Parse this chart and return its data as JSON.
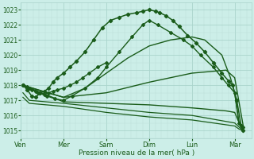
{
  "xlabel": "Pression niveau de la mer( hPa )",
  "background_color": "#cceee8",
  "grid_color_major": "#aad4cc",
  "grid_color_minor": "#bbddd8",
  "line_color": "#1a5c1a",
  "ylim": [
    1014.5,
    1023.5
  ],
  "yticks": [
    1015,
    1016,
    1017,
    1018,
    1019,
    1020,
    1021,
    1022,
    1023
  ],
  "days": [
    "Ven",
    "Mer",
    "Sam",
    "Dim",
    "Lun",
    "Mar"
  ],
  "xlim": [
    0.0,
    5.4
  ],
  "lines": [
    {
      "x": [
        0.05,
        0.15,
        0.25,
        0.35,
        0.45,
        0.55,
        0.65,
        0.75,
        0.85,
        1.0,
        1.15,
        1.3,
        1.5,
        1.7,
        1.9,
        2.1,
        2.3,
        2.5,
        2.7,
        2.85,
        3.0,
        3.15,
        3.25,
        3.4,
        3.55,
        3.7,
        3.9,
        4.1,
        4.3,
        4.5,
        4.7,
        4.85,
        4.95,
        5.05,
        5.15,
        5.2
      ],
      "y": [
        1018.0,
        1017.7,
        1017.3,
        1017.2,
        1017.5,
        1017.6,
        1017.8,
        1018.2,
        1018.5,
        1018.8,
        1019.2,
        1019.6,
        1020.2,
        1021.0,
        1021.8,
        1022.3,
        1022.5,
        1022.7,
        1022.8,
        1022.9,
        1023.0,
        1022.9,
        1022.8,
        1022.6,
        1022.3,
        1021.9,
        1021.3,
        1020.8,
        1020.2,
        1019.5,
        1018.8,
        1018.3,
        1018.0,
        1017.0,
        1015.3,
        1015.0
      ],
      "marker": "D",
      "ms": 2.2,
      "lw": 1.1
    },
    {
      "x": [
        0.05,
        0.2,
        0.4,
        0.6,
        0.8,
        1.0,
        1.2,
        1.5,
        1.8,
        2.0,
        2.3,
        2.6,
        2.85,
        3.0,
        3.2,
        3.5,
        3.8,
        4.0,
        4.2,
        4.5,
        4.7,
        4.85,
        5.0,
        5.1,
        5.2
      ],
      "y": [
        1018.0,
        1017.8,
        1017.5,
        1017.3,
        1017.1,
        1017.0,
        1017.3,
        1017.8,
        1018.5,
        1019.2,
        1020.2,
        1021.2,
        1022.0,
        1022.3,
        1022.0,
        1021.5,
        1021.0,
        1020.6,
        1020.0,
        1019.2,
        1018.5,
        1018.0,
        1017.5,
        1015.5,
        1015.2
      ],
      "marker": "D",
      "ms": 2.0,
      "lw": 1.0
    },
    {
      "x": [
        0.05,
        0.5,
        1.0,
        1.5,
        2.0,
        2.5,
        3.0,
        3.5,
        4.0,
        4.3,
        4.7,
        4.9,
        5.0,
        5.1,
        5.2
      ],
      "y": [
        1018.0,
        1017.6,
        1017.2,
        1017.8,
        1018.8,
        1019.8,
        1020.6,
        1021.0,
        1021.2,
        1021.0,
        1020.0,
        1018.5,
        1017.5,
        1015.5,
        1015.2
      ],
      "marker": null,
      "ms": 0,
      "lw": 1.0
    },
    {
      "x": [
        0.05,
        1.0,
        2.0,
        3.0,
        4.0,
        4.8,
        5.0,
        5.2
      ],
      "y": [
        1018.0,
        1017.2,
        1017.5,
        1018.2,
        1018.8,
        1019.0,
        1018.5,
        1015.3
      ],
      "marker": null,
      "ms": 0,
      "lw": 1.0
    },
    {
      "x": [
        0.05,
        1.0,
        2.0,
        3.0,
        4.0,
        4.8,
        5.0,
        5.15,
        5.2
      ],
      "y": [
        1018.0,
        1016.9,
        1016.8,
        1016.7,
        1016.5,
        1016.3,
        1016.2,
        1015.2,
        1015.0
      ],
      "marker": null,
      "ms": 0,
      "lw": 1.0
    },
    {
      "x": [
        0.05,
        0.2,
        1.0,
        2.0,
        3.0,
        4.0,
        5.0,
        5.15,
        5.2
      ],
      "y": [
        1017.5,
        1017.0,
        1016.8,
        1016.5,
        1016.2,
        1016.0,
        1015.5,
        1015.1,
        1015.05
      ],
      "marker": null,
      "ms": 0,
      "lw": 0.9
    },
    {
      "x": [
        0.05,
        0.2,
        1.0,
        2.0,
        3.0,
        4.0,
        5.0,
        5.1,
        5.2
      ],
      "y": [
        1017.2,
        1016.8,
        1016.6,
        1016.2,
        1015.9,
        1015.7,
        1015.3,
        1015.1,
        1015.0
      ],
      "marker": null,
      "ms": 0,
      "lw": 0.9
    },
    {
      "x": [
        0.05,
        0.15,
        0.25,
        0.35,
        0.45,
        0.55,
        0.65,
        0.75,
        0.85,
        1.0,
        1.15,
        1.3,
        1.45,
        1.6,
        1.8,
        2.0
      ],
      "y": [
        1018.0,
        1017.9,
        1017.7,
        1017.6,
        1017.5,
        1017.4,
        1017.5,
        1017.6,
        1017.7,
        1017.8,
        1018.0,
        1018.2,
        1018.5,
        1018.8,
        1019.2,
        1019.5
      ],
      "marker": "D",
      "ms": 2.0,
      "lw": 1.0
    }
  ]
}
